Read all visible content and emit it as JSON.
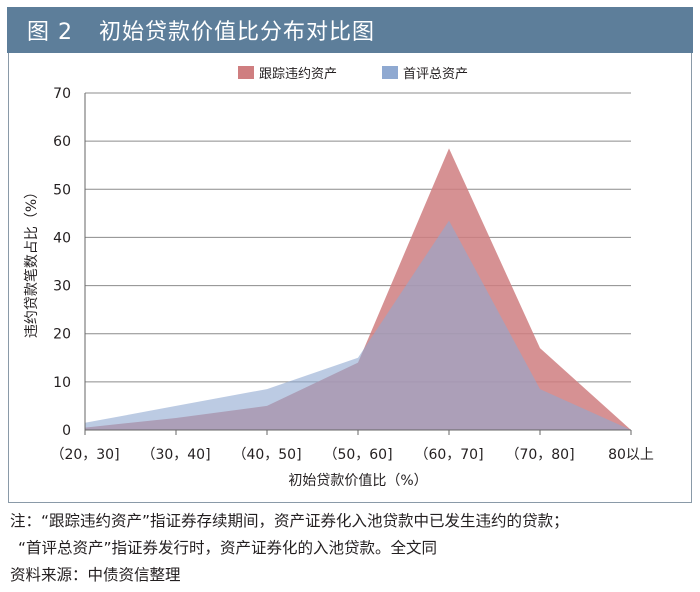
{
  "figure": {
    "label": "图 2",
    "title": "初始贷款价值比分布对比图"
  },
  "colors": {
    "header_bg": "#5d7e9a",
    "series_default": "#cf7e80",
    "series_first": "#8fa9d1",
    "grid": "#8c8c8c"
  },
  "chart_data": {
    "type": "area",
    "title": "初始贷款价值比分布对比图",
    "xlabel": "初始贷款价值比（%）",
    "ylabel": "违约贷款笔数占比（%）",
    "categories": [
      "（20，30]",
      "（30，40]",
      "（40，50]",
      "（50，60]",
      "（60，70]",
      "（70，80]",
      "80以上"
    ],
    "ylim": [
      0,
      70
    ],
    "yticks": [
      0,
      10,
      20,
      30,
      40,
      50,
      60,
      70
    ],
    "legend_position": "top",
    "series": [
      {
        "name": "跟踪违约资产",
        "color": "#cf7e80",
        "values": [
          0.5,
          2.5,
          5,
          14,
          58.5,
          17,
          0
        ]
      },
      {
        "name": "首评总资产",
        "color": "#8fa9d1",
        "values": [
          1.5,
          5,
          8.5,
          15,
          43.5,
          8.5,
          0
        ]
      }
    ]
  },
  "notes": {
    "line1": "注：“跟踪违约资产”指证券存续期间，资产证券化入池贷款中已发生违约的贷款；",
    "line2": "“首评总资产”指证券发行时，资产证券化的入池贷款。全文同",
    "source": "资料来源：中债资信整理"
  }
}
